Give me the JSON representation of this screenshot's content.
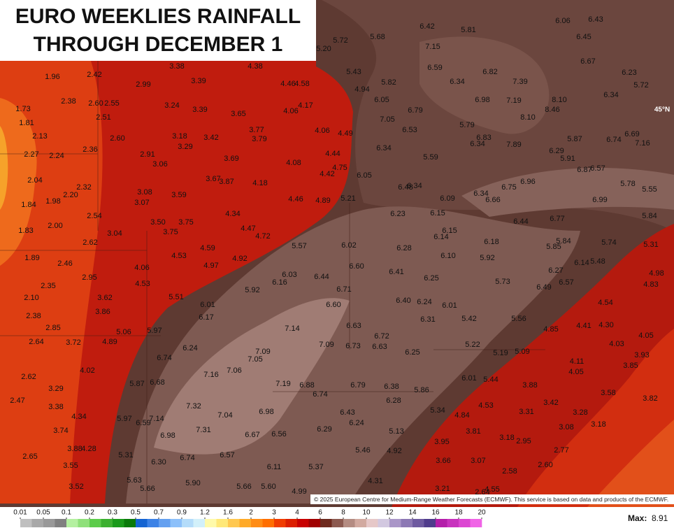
{
  "title": [
    "EURO WEEKLIES RAINFALL",
    "THROUGH DECEMBER 1"
  ],
  "map": {
    "grid_labels": [
      "45°N"
    ],
    "labels": [
      "1.96",
      "2.42",
      "3.38",
      "4.38",
      "2.99",
      "3.39",
      "4.46",
      "4.58",
      "2.38",
      "2.60",
      "2.55",
      "3.24",
      "3.39",
      "3.65",
      "4.06",
      "4.17",
      "1.73",
      "2.51",
      "1.81",
      "3.77",
      "4.06",
      "4.49",
      "2.13",
      "2.60",
      "3.18",
      "3.42",
      "3.79",
      "3.29",
      "2.36",
      "2.91",
      "4.44",
      "2.27",
      "2.24",
      "3.69",
      "4.08",
      "3.06",
      "4.75",
      "4.42",
      "2.04",
      "3.67",
      "3.87",
      "4.18",
      "2.32",
      "2.20",
      "3.08",
      "3.59",
      "4.46",
      "4.89",
      "5.21",
      "1.84",
      "1.98",
      "3.07",
      "2.54",
      "4.34",
      "3.50",
      "3.75",
      "1.83",
      "2.00",
      "3.04",
      "3.75",
      "4.47",
      "4.72",
      "2.62",
      "5.57",
      "6.02",
      "6.28",
      "4.59",
      "4.53",
      "4.92",
      "1.89",
      "2.46",
      "4.06",
      "4.97",
      "2.95",
      "4.53",
      "6.03",
      "6.44",
      "6.60",
      "6.41",
      "6.25",
      "2.35",
      "6.16",
      "5.92",
      "6.71",
      "3.62",
      "5.51",
      "2.10",
      "6.01",
      "6.60",
      "6.40",
      "6.24",
      "6.01",
      "3.86",
      "2.38",
      "6.17",
      "6.31",
      "5.42",
      "5.56",
      "2.85",
      "5.06",
      "5.97",
      "7.14",
      "6.63",
      "6.72",
      "2.64",
      "3.72",
      "4.89",
      "7.09",
      "6.73",
      "6.63",
      "6.24",
      "7.09",
      "6.25",
      "5.22",
      "5.19",
      "5.09",
      "6.74",
      "7.05",
      "4.02",
      "7.16",
      "7.06",
      "2.62",
      "5.87",
      "6.68",
      "7.19",
      "6.88",
      "6.79",
      "6.38",
      "6.01",
      "5.44",
      "3.29",
      "6.74",
      "5.86",
      "3.88",
      "2.47",
      "3.38",
      "7.32",
      "6.28",
      "6.98",
      "6.43",
      "5.34",
      "4.53",
      "3.31",
      "3.42",
      "4.34",
      "5.97",
      "7.14",
      "7.04",
      "6.59",
      "6.24",
      "4.84",
      "3.74",
      "7.31",
      "6.98",
      "6.67",
      "6.56",
      "6.29",
      "5.13",
      "3.81",
      "3.18",
      "2.95",
      "3.08",
      "3.28",
      "3.18",
      "3.95",
      "3.88",
      "4.28",
      "5.31",
      "6.57",
      "5.46",
      "4.92",
      "2.77",
      "2.65",
      "6.74",
      "6.30",
      "6.11",
      "5.37",
      "3.66",
      "3.07",
      "2.60",
      "3.55",
      "2.58",
      "4.31",
      "5.63",
      "5.90",
      "5.66",
      "5.60",
      "3.52",
      "5.66",
      "3.21",
      "2.64",
      "4.55",
      "4.99",
      "5.20",
      "5.72",
      "5.68",
      "6.42",
      "5.81",
      "7.15",
      "6.06",
      "6.43",
      "6.45",
      "6.67",
      "5.43",
      "6.59",
      "6.82",
      "6.23",
      "5.72",
      "4.94",
      "5.82",
      "6.34",
      "7.39",
      "6.98",
      "6.05",
      "6.79",
      "7.19",
      "8.10",
      "6.34",
      "8.46",
      "7.05",
      "8.10",
      "6.53",
      "5.79",
      "6.83",
      "6.34",
      "7.89",
      "5.87",
      "6.74",
      "6.69",
      "7.16",
      "6.34",
      "5.59",
      "6.29",
      "5.91",
      "6.05",
      "6.87",
      "6.57",
      "6.48",
      "6.34",
      "6.75",
      "6.96",
      "5.78",
      "5.55",
      "6.09",
      "6.34",
      "6.66",
      "6.99",
      "6.23",
      "6.15",
      "6.44",
      "6.77",
      "5.84",
      "6.15",
      "6.14",
      "6.18",
      "5.84",
      "5.74",
      "5.31",
      "5.85",
      "6.10",
      "5.92",
      "6.14",
      "5.48",
      "6.27",
      "4.98",
      "5.73",
      "6.57",
      "4.83",
      "6.49",
      "4.54",
      "4.41",
      "4.30",
      "4.85",
      "4.05",
      "4.03",
      "3.93",
      "4.11",
      "3.85",
      "4.05",
      "3.58",
      "3.82"
    ]
  },
  "credit": "© 2025 European Centre for Medium-Range Weather Forecasts (ECMWF). This service is based on data and products of the ECMWF.",
  "legend": {
    "ticks": [
      0.01,
      0.05,
      0.1,
      0.2,
      0.3,
      0.5,
      0.7,
      0.9,
      1.2,
      1.6,
      2,
      3,
      4,
      6,
      8,
      10,
      12,
      14,
      16,
      18,
      20
    ],
    "colors": [
      "#bfbfbf",
      "#a8a8a8",
      "#999999",
      "#808080",
      "#b4f0a0",
      "#8fe07a",
      "#5ccc4a",
      "#3cb030",
      "#1a9a1a",
      "#0a7a0a",
      "#1464d2",
      "#3c82e6",
      "#64a0f0",
      "#8cc0fa",
      "#b4dcfa",
      "#d2f0fa",
      "#fffaaa",
      "#ffe878",
      "#ffc850",
      "#ffaa28",
      "#ff8c14",
      "#ff6e00",
      "#f03c00",
      "#dc1e00",
      "#c80000",
      "#a00000",
      "#6e2a1e",
      "#8c5a50",
      "#b48c82",
      "#d2aaa0",
      "#e6c8c8",
      "#d2c8e0",
      "#aa96c8",
      "#8c78b4",
      "#6e5aa0",
      "#503c8c",
      "#b41eaa",
      "#c832be",
      "#dc46d2",
      "#f064e6"
    ]
  },
  "max": {
    "label": "Max:",
    "value": 8.91
  }
}
